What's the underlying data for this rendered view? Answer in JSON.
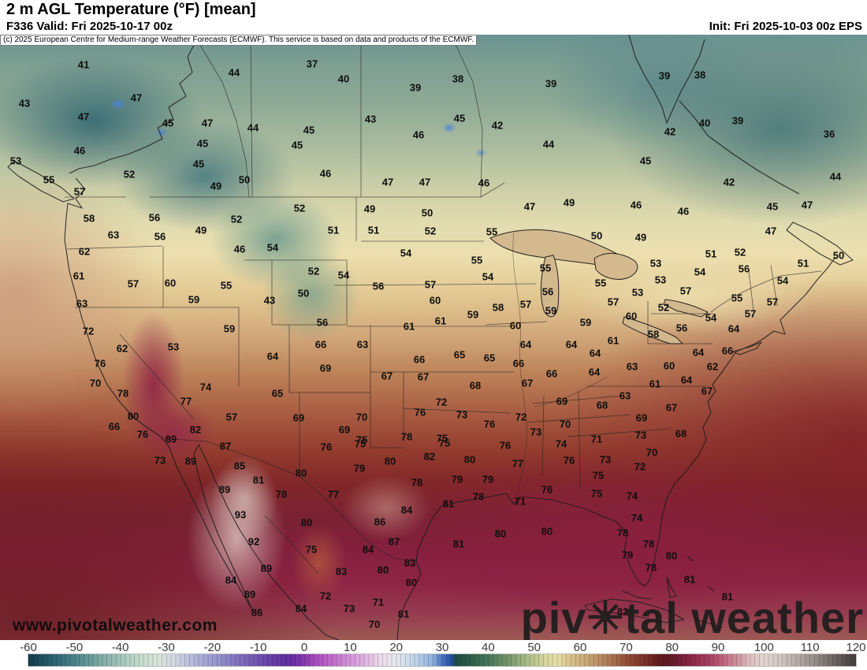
{
  "header": {
    "title": "2 m AGL Temperature (°F) [mean]",
    "valid": "F336 Valid: Fri 2025-10-17 00z",
    "init": "Init: Fri 2025-10-03 00z EPS"
  },
  "copyright": "(c) 2025 European Centre for Medium-range Weather Forecasts (ECMWF). This service is based on data and products of the ECMWF.",
  "watermarks": {
    "url": "www.pivotalweather.com",
    "brand_prefix": "piv",
    "brand_gear": "✳",
    "brand_suffix": "tal weather"
  },
  "chart_data": {
    "type": "heatmap",
    "title": "2 m AGL Temperature (°F) [mean]",
    "units": "°F",
    "model": "ECMWF EPS",
    "forecast_hour": "F336",
    "valid": "Fri 2025-10-17 00z",
    "init": "Fri 2025-10-03 00z",
    "colorbar": {
      "min": -60,
      "max": 120,
      "ticks": [
        -60,
        -50,
        -40,
        -30,
        -20,
        -10,
        0,
        10,
        20,
        30,
        40,
        50,
        60,
        70,
        80,
        90,
        100,
        110,
        120
      ],
      "stops": [
        [
          -60,
          "#16394a"
        ],
        [
          -56,
          "#24586a"
        ],
        [
          -52,
          "#3c7680"
        ],
        [
          -48,
          "#5b9093"
        ],
        [
          -44,
          "#7fada6"
        ],
        [
          -40,
          "#a3c5ba"
        ],
        [
          -36,
          "#c3d9cc"
        ],
        [
          -32,
          "#d9e4da"
        ],
        [
          -28,
          "#d3d6e2"
        ],
        [
          -24,
          "#b5b6da"
        ],
        [
          -20,
          "#9c9cd0"
        ],
        [
          -16,
          "#887fc4"
        ],
        [
          -12,
          "#785fb6"
        ],
        [
          -8,
          "#6a44aa"
        ],
        [
          -4,
          "#5f309e"
        ],
        [
          -1,
          "#7a32ac"
        ],
        [
          2,
          "#a348bc"
        ],
        [
          6,
          "#c06cca"
        ],
        [
          10,
          "#d494d8"
        ],
        [
          14,
          "#e4bce4"
        ],
        [
          17,
          "#eedeec"
        ],
        [
          20,
          "#e6e8ee"
        ],
        [
          24,
          "#c2d4ea"
        ],
        [
          28,
          "#8cb0da"
        ],
        [
          30,
          "#4a74c4"
        ],
        [
          32,
          "#27519f"
        ],
        [
          33,
          "#1d4a43"
        ],
        [
          36,
          "#2d5e4d"
        ],
        [
          40,
          "#47765a"
        ],
        [
          44,
          "#72926a"
        ],
        [
          48,
          "#a3b883"
        ],
        [
          52,
          "#d3d49c"
        ],
        [
          55,
          "#e6dfa6"
        ],
        [
          58,
          "#d9c28c"
        ],
        [
          62,
          "#c6a172"
        ],
        [
          66,
          "#ae7c57"
        ],
        [
          70,
          "#934f38"
        ],
        [
          74,
          "#7c3128"
        ],
        [
          77,
          "#641d1d"
        ],
        [
          79,
          "#5e1a22"
        ],
        [
          81,
          "#6f1d33"
        ],
        [
          84,
          "#8b2748"
        ],
        [
          88,
          "#a83f60"
        ],
        [
          91,
          "#bd647e"
        ],
        [
          94,
          "#cd8f9b"
        ],
        [
          97,
          "#dfbfc0"
        ],
        [
          100,
          "#e3d6d2"
        ],
        [
          104,
          "#cfc3bf"
        ],
        [
          108,
          "#b0a5a2"
        ],
        [
          112,
          "#8d8482"
        ],
        [
          116,
          "#655e5c"
        ],
        [
          120,
          "#423d3c"
        ]
      ]
    },
    "stations": [
      [
        41,
        106,
        82
      ],
      [
        44,
        297,
        92
      ],
      [
        43,
        31,
        131
      ],
      [
        47,
        173,
        124
      ],
      [
        47,
        106,
        148
      ],
      [
        45,
        213,
        156
      ],
      [
        47,
        263,
        156
      ],
      [
        44,
        321,
        162
      ],
      [
        46,
        101,
        191
      ],
      [
        45,
        257,
        182
      ],
      [
        45,
        252,
        208
      ],
      [
        53,
        20,
        204
      ],
      [
        52,
        164,
        221
      ],
      [
        55,
        62,
        228
      ],
      [
        50,
        310,
        228
      ],
      [
        49,
        274,
        236
      ],
      [
        57,
        101,
        243
      ],
      [
        58,
        113,
        277
      ],
      [
        56,
        196,
        276
      ],
      [
        63,
        144,
        298
      ],
      [
        56,
        203,
        300
      ],
      [
        49,
        255,
        292
      ],
      [
        52,
        300,
        278
      ],
      [
        62,
        107,
        319
      ],
      [
        37,
        396,
        81
      ],
      [
        40,
        436,
        100
      ],
      [
        39,
        527,
        111
      ],
      [
        38,
        581,
        100
      ],
      [
        39,
        699,
        106
      ],
      [
        43,
        470,
        151
      ],
      [
        45,
        583,
        150
      ],
      [
        42,
        631,
        159
      ],
      [
        45,
        392,
        165
      ],
      [
        45,
        377,
        184
      ],
      [
        46,
        531,
        171
      ],
      [
        44,
        696,
        183
      ],
      [
        46,
        413,
        220
      ],
      [
        47,
        492,
        231
      ],
      [
        47,
        539,
        231
      ],
      [
        46,
        614,
        232
      ],
      [
        52,
        380,
        264
      ],
      [
        49,
        469,
        265
      ],
      [
        50,
        542,
        270
      ],
      [
        51,
        423,
        292
      ],
      [
        51,
        474,
        292
      ],
      [
        52,
        546,
        293
      ],
      [
        55,
        624,
        294
      ],
      [
        47,
        672,
        262
      ],
      [
        49,
        722,
        257
      ],
      [
        39,
        843,
        96
      ],
      [
        38,
        888,
        95
      ],
      [
        40,
        894,
        156
      ],
      [
        39,
        936,
        153
      ],
      [
        42,
        850,
        167
      ],
      [
        36,
        1052,
        170
      ],
      [
        45,
        819,
        204
      ],
      [
        42,
        925,
        231
      ],
      [
        44,
        1060,
        224
      ],
      [
        46,
        807,
        260
      ],
      [
        46,
        867,
        268
      ],
      [
        45,
        980,
        262
      ],
      [
        47,
        1024,
        260
      ],
      [
        47,
        978,
        293
      ],
      [
        50,
        757,
        299
      ],
      [
        49,
        813,
        301
      ],
      [
        51,
        902,
        322
      ],
      [
        52,
        939,
        320
      ],
      [
        50,
        1064,
        324
      ],
      [
        51,
        1019,
        334
      ],
      [
        53,
        832,
        334
      ],
      [
        46,
        304,
        316
      ],
      [
        54,
        346,
        314
      ],
      [
        61,
        100,
        350
      ],
      [
        57,
        169,
        360
      ],
      [
        60,
        216,
        359
      ],
      [
        55,
        287,
        362
      ],
      [
        59,
        246,
        380
      ],
      [
        43,
        342,
        381
      ],
      [
        63,
        104,
        385
      ],
      [
        72,
        112,
        420
      ],
      [
        59,
        291,
        417
      ],
      [
        62,
        155,
        442
      ],
      [
        53,
        220,
        440
      ],
      [
        64,
        346,
        452
      ],
      [
        76,
        127,
        461
      ],
      [
        70,
        121,
        486
      ],
      [
        78,
        156,
        499
      ],
      [
        74,
        261,
        491
      ],
      [
        77,
        236,
        509
      ],
      [
        65,
        352,
        499
      ],
      [
        57,
        294,
        529
      ],
      [
        80,
        169,
        528
      ],
      [
        66,
        145,
        541
      ],
      [
        82,
        248,
        545
      ],
      [
        76,
        181,
        551
      ],
      [
        89,
        217,
        557
      ],
      [
        54,
        515,
        321
      ],
      [
        55,
        605,
        330
      ],
      [
        52,
        398,
        344
      ],
      [
        54,
        436,
        349
      ],
      [
        55,
        692,
        340
      ],
      [
        54,
        619,
        351
      ],
      [
        56,
        480,
        363
      ],
      [
        57,
        546,
        361
      ],
      [
        56,
        695,
        370
      ],
      [
        50,
        385,
        372
      ],
      [
        60,
        552,
        381
      ],
      [
        57,
        667,
        386
      ],
      [
        58,
        632,
        390
      ],
      [
        59,
        600,
        399
      ],
      [
        59,
        699,
        394
      ],
      [
        56,
        409,
        409
      ],
      [
        61,
        519,
        414
      ],
      [
        61,
        559,
        407
      ],
      [
        60,
        654,
        413
      ],
      [
        56,
        944,
        341
      ],
      [
        54,
        888,
        345
      ],
      [
        54,
        993,
        356
      ],
      [
        55,
        762,
        359
      ],
      [
        53,
        838,
        355
      ],
      [
        57,
        870,
        369
      ],
      [
        53,
        809,
        371
      ],
      [
        55,
        935,
        378
      ],
      [
        57,
        980,
        383
      ],
      [
        57,
        778,
        383
      ],
      [
        52,
        842,
        390
      ],
      [
        60,
        801,
        401
      ],
      [
        57,
        952,
        398
      ],
      [
        59,
        743,
        409
      ],
      [
        54,
        902,
        403
      ],
      [
        56,
        865,
        416
      ],
      [
        58,
        829,
        424
      ],
      [
        64,
        931,
        417
      ],
      [
        61,
        778,
        432
      ],
      [
        66,
        407,
        437
      ],
      [
        63,
        460,
        437
      ],
      [
        64,
        667,
        437
      ],
      [
        64,
        725,
        437
      ],
      [
        65,
        583,
        450
      ],
      [
        65,
        621,
        454
      ],
      [
        66,
        532,
        456
      ],
      [
        66,
        658,
        461
      ],
      [
        69,
        413,
        467
      ],
      [
        67,
        491,
        477
      ],
      [
        67,
        537,
        478
      ],
      [
        66,
        700,
        474
      ],
      [
        67,
        669,
        486
      ],
      [
        68,
        603,
        489
      ],
      [
        69,
        713,
        509
      ],
      [
        72,
        560,
        510
      ],
      [
        76,
        533,
        523
      ],
      [
        73,
        586,
        526
      ],
      [
        70,
        459,
        529
      ],
      [
        69,
        379,
        530
      ],
      [
        76,
        621,
        538
      ],
      [
        72,
        661,
        529
      ],
      [
        70,
        717,
        538
      ],
      [
        69,
        437,
        545
      ],
      [
        73,
        680,
        548
      ],
      [
        78,
        516,
        554
      ],
      [
        75,
        561,
        556
      ],
      [
        75,
        459,
        558
      ],
      [
        64,
        755,
        448
      ],
      [
        66,
        923,
        445
      ],
      [
        64,
        886,
        447
      ],
      [
        64,
        754,
        472
      ],
      [
        63,
        802,
        465
      ],
      [
        60,
        849,
        464
      ],
      [
        62,
        904,
        465
      ],
      [
        61,
        831,
        487
      ],
      [
        64,
        871,
        482
      ],
      [
        67,
        897,
        496
      ],
      [
        63,
        793,
        502
      ],
      [
        68,
        764,
        514
      ],
      [
        67,
        852,
        517
      ],
      [
        69,
        814,
        530
      ],
      [
        73,
        813,
        552
      ],
      [
        68,
        864,
        550
      ],
      [
        71,
        757,
        557
      ],
      [
        73,
        203,
        584
      ],
      [
        89,
        242,
        585
      ],
      [
        87,
        286,
        566
      ],
      [
        85,
        304,
        591
      ],
      [
        81,
        328,
        609
      ],
      [
        89,
        285,
        621
      ],
      [
        78,
        357,
        627
      ],
      [
        93,
        305,
        653
      ],
      [
        92,
        322,
        687
      ],
      [
        89,
        338,
        721
      ],
      [
        84,
        293,
        736
      ],
      [
        89,
        317,
        754
      ],
      [
        86,
        326,
        777
      ],
      [
        76,
        414,
        567
      ],
      [
        75,
        457,
        563
      ],
      [
        75,
        564,
        562
      ],
      [
        76,
        641,
        565
      ],
      [
        74,
        712,
        563
      ],
      [
        82,
        545,
        579
      ],
      [
        80,
        495,
        585
      ],
      [
        80,
        596,
        583
      ],
      [
        77,
        657,
        588
      ],
      [
        76,
        722,
        584
      ],
      [
        79,
        456,
        594
      ],
      [
        80,
        382,
        600
      ],
      [
        78,
        529,
        612
      ],
      [
        79,
        580,
        608
      ],
      [
        79,
        619,
        608
      ],
      [
        77,
        423,
        627
      ],
      [
        78,
        607,
        630
      ],
      [
        76,
        694,
        621
      ],
      [
        71,
        660,
        636
      ],
      [
        81,
        569,
        639
      ],
      [
        84,
        516,
        647
      ],
      [
        86,
        482,
        662
      ],
      [
        80,
        389,
        663
      ],
      [
        80,
        635,
        677
      ],
      [
        80,
        694,
        674
      ],
      [
        87,
        500,
        687
      ],
      [
        75,
        395,
        697
      ],
      [
        84,
        467,
        697
      ],
      [
        81,
        582,
        690
      ],
      [
        83,
        433,
        725
      ],
      [
        83,
        520,
        714
      ],
      [
        80,
        486,
        723
      ],
      [
        80,
        522,
        739
      ],
      [
        72,
        413,
        756
      ],
      [
        73,
        443,
        772
      ],
      [
        71,
        480,
        764
      ],
      [
        81,
        512,
        779
      ],
      [
        84,
        382,
        772
      ],
      [
        70,
        475,
        792
      ],
      [
        73,
        768,
        583
      ],
      [
        70,
        827,
        574
      ],
      [
        72,
        812,
        592
      ],
      [
        75,
        759,
        603
      ],
      [
        75,
        757,
        626
      ],
      [
        74,
        802,
        629
      ],
      [
        74,
        808,
        657
      ],
      [
        78,
        790,
        676
      ],
      [
        78,
        823,
        690
      ],
      [
        79,
        796,
        704
      ],
      [
        80,
        852,
        705
      ],
      [
        78,
        826,
        720
      ],
      [
        81,
        875,
        735
      ],
      [
        81,
        923,
        757
      ],
      [
        82,
        790,
        776
      ]
    ]
  }
}
